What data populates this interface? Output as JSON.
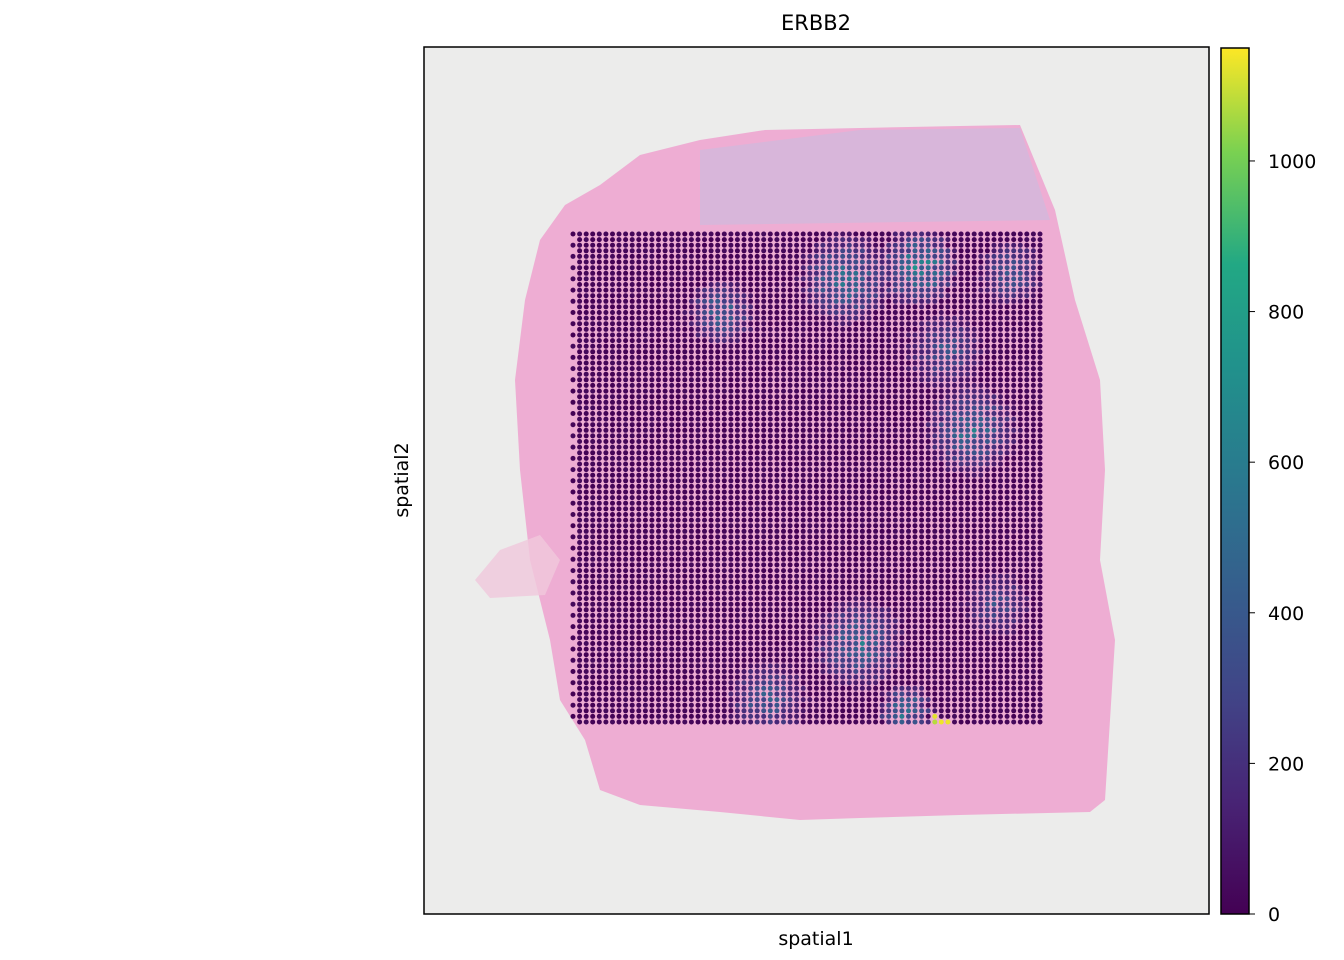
{
  "chart_data": {
    "type": "scatter",
    "subtype": "spatial-spot-plot",
    "title": "ERBB2",
    "xlabel": "spatial1",
    "ylabel": "spatial2",
    "x_ticks": [],
    "y_ticks": [],
    "grid": false,
    "background": "H&E tissue image",
    "colormap": "viridis",
    "colorbar": {
      "range": [
        0,
        1150
      ],
      "ticks": [
        0,
        200,
        400,
        600,
        800,
        1000
      ],
      "tick_labels": [
        "0",
        "200",
        "400",
        "600",
        "800",
        "1000"
      ],
      "placement": "right"
    },
    "spot_grid": {
      "columns": 72,
      "rows": 88,
      "layout": "hexagonal",
      "baseline_value": 0
    },
    "hotspots": [
      {
        "col": 22,
        "row": 14,
        "value": 550,
        "radius": 5
      },
      {
        "col": 41,
        "row": 8,
        "value": 650,
        "radius": 7
      },
      {
        "col": 52,
        "row": 6,
        "value": 780,
        "radius": 6
      },
      {
        "col": 66,
        "row": 7,
        "value": 480,
        "radius": 5
      },
      {
        "col": 56,
        "row": 21,
        "value": 450,
        "radius": 6
      },
      {
        "col": 60,
        "row": 35,
        "value": 620,
        "radius": 7
      },
      {
        "col": 43,
        "row": 73,
        "value": 600,
        "radius": 7
      },
      {
        "col": 29,
        "row": 83,
        "value": 500,
        "radius": 6
      },
      {
        "col": 64,
        "row": 66,
        "value": 400,
        "radius": 5
      },
      {
        "col": 50,
        "row": 85,
        "value": 650,
        "radius": 4
      },
      {
        "col": 55,
        "row": 87,
        "value": 1120,
        "radius": 1
      }
    ]
  }
}
